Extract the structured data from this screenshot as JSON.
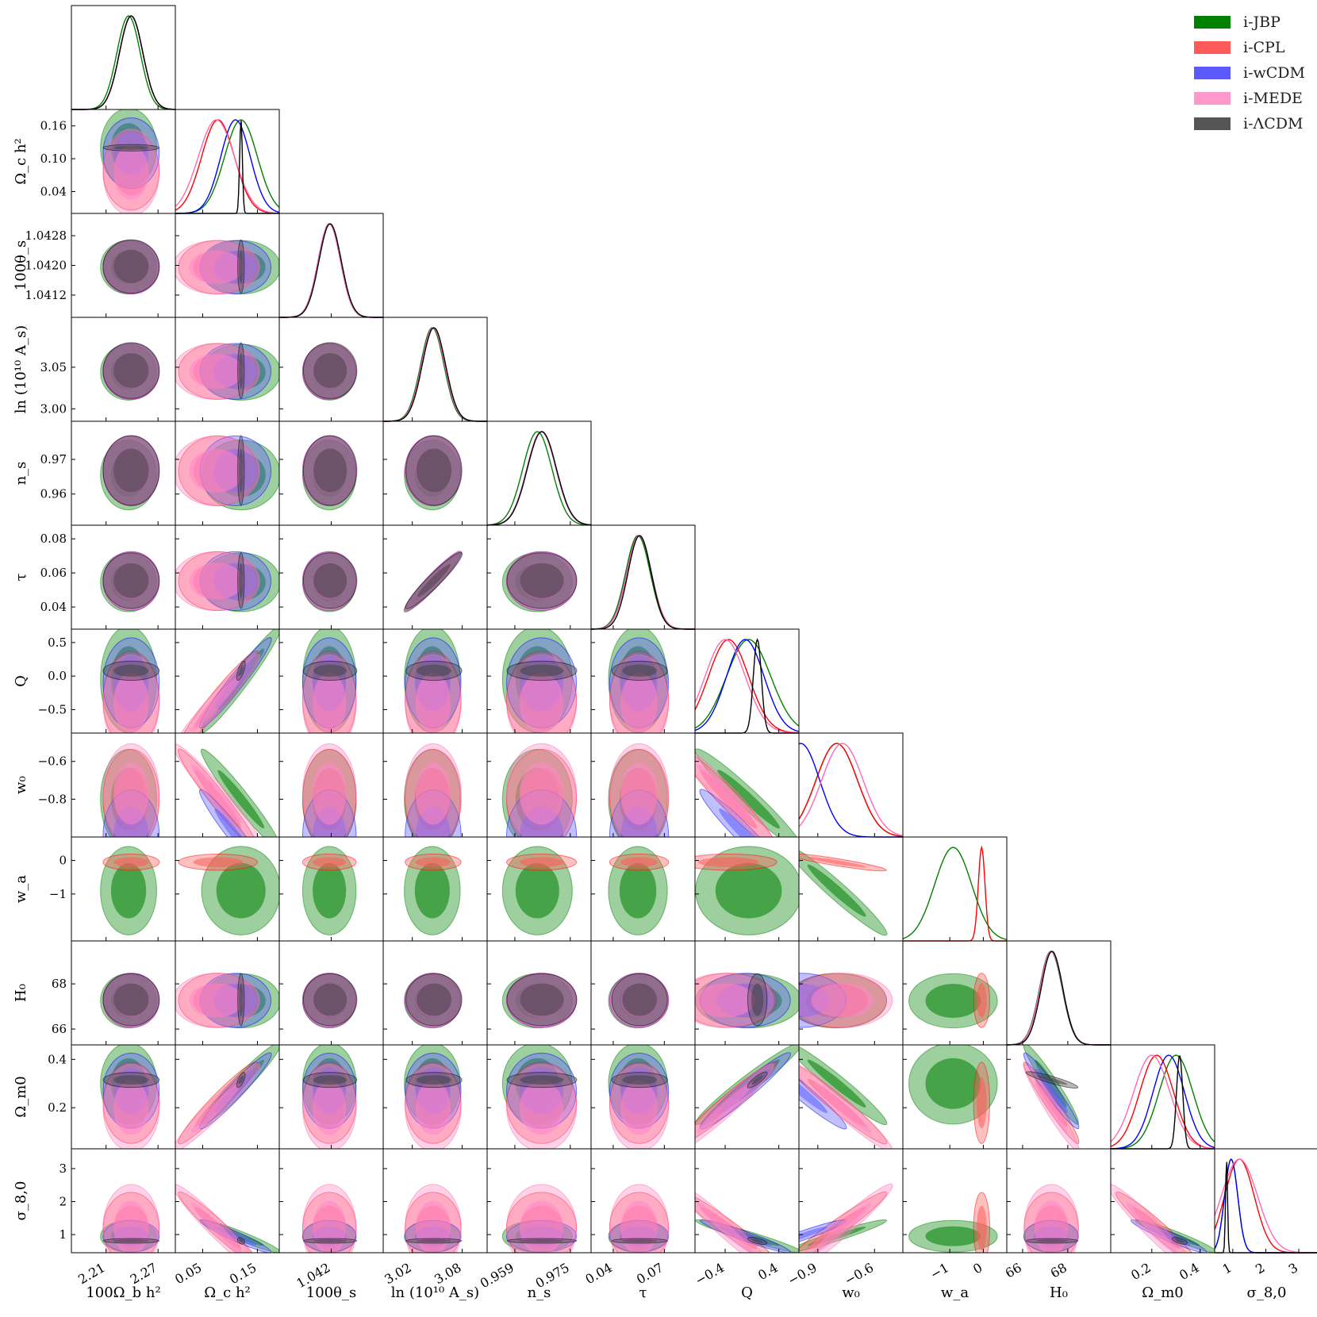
{
  "chart_data": {
    "type": "triangle-corner-plot",
    "models": [
      {
        "name": "i-JBP",
        "color": "#008000"
      },
      {
        "name": "i-CPL",
        "color": "#ff0000"
      },
      {
        "name": "i-wCDM",
        "color": "#0000ff"
      },
      {
        "name": "i-MEDE",
        "color": "#ff69b4"
      },
      {
        "name": "i-ΛCDM",
        "color": "#333333"
      }
    ],
    "legend_position": "top-right",
    "parameters": [
      {
        "id": "omegabh2",
        "label": "100Ω_b h²",
        "range": [
          2.17,
          2.29
        ],
        "ticks": [
          2.21,
          2.27
        ],
        "tick_labels": [
          "2.21",
          "2.27"
        ],
        "ylabel_ticks": [],
        "ylabel_tick_labels": []
      },
      {
        "id": "omegach2",
        "label": "Ω_c h²",
        "range": [
          0.0,
          0.19
        ],
        "ticks": [
          0.05,
          0.15
        ],
        "tick_labels": [
          "0.05",
          "0.15"
        ],
        "ylabel_ticks": [
          0.04,
          0.1,
          0.16
        ],
        "ylabel_tick_labels": [
          "0.04",
          "0.10",
          "0.16"
        ]
      },
      {
        "id": "theta",
        "label": "100θ_s",
        "range": [
          1.0406,
          1.0434
        ],
        "ticks": [
          1.042
        ],
        "tick_labels": [
          "1.042"
        ],
        "ylabel_ticks": [
          1.0412,
          1.042,
          1.0428
        ],
        "ylabel_tick_labels": [
          "1.0412",
          "1.0420",
          "1.0428"
        ]
      },
      {
        "id": "logA",
        "label": "ln (10¹⁰ A_s)",
        "range": [
          2.985,
          3.11
        ],
        "ticks": [
          3.02,
          3.08
        ],
        "tick_labels": [
          "3.02",
          "3.08"
        ],
        "ylabel_ticks": [
          3.0,
          3.05
        ],
        "ylabel_tick_labels": [
          "3.00",
          "3.05"
        ]
      },
      {
        "id": "ns",
        "label": "n_s",
        "range": [
          0.951,
          0.981
        ],
        "ticks": [
          0.959,
          0.975
        ],
        "tick_labels": [
          "0.959",
          "0.975"
        ],
        "ylabel_ticks": [
          0.96,
          0.97
        ],
        "ylabel_tick_labels": [
          "0.96",
          "0.97"
        ]
      },
      {
        "id": "tau",
        "label": "τ",
        "range": [
          0.027,
          0.088
        ],
        "ticks": [
          0.04,
          0.07
        ],
        "tick_labels": [
          "0.04",
          "0.07"
        ],
        "ylabel_ticks": [
          0.04,
          0.06,
          0.08
        ],
        "ylabel_tick_labels": [
          "0.04",
          "0.06",
          "0.08"
        ]
      },
      {
        "id": "Q",
        "label": "Q",
        "range": [
          -0.85,
          0.7
        ],
        "ticks": [
          -0.4,
          0.4
        ],
        "tick_labels": [
          "−0.4",
          "0.4"
        ],
        "ylabel_ticks": [
          -0.5,
          0.0,
          0.5
        ],
        "ylabel_tick_labels": [
          "−0.5",
          "0.0",
          "0.5"
        ]
      },
      {
        "id": "w0",
        "label": "w₀",
        "range": [
          -1.0,
          -0.45
        ],
        "ticks": [
          -0.9,
          -0.6
        ],
        "tick_labels": [
          "−0.9",
          "−0.6"
        ],
        "ylabel_ticks": [
          -0.8,
          -0.6
        ],
        "ylabel_tick_labels": [
          "−0.8",
          "−0.6"
        ]
      },
      {
        "id": "wa",
        "label": "w_a",
        "range": [
          -2.4,
          0.7
        ],
        "ticks": [
          -1,
          0
        ],
        "tick_labels": [
          "−1",
          "0"
        ],
        "ylabel_ticks": [
          -1,
          0
        ],
        "ylabel_tick_labels": [
          "−1",
          "0"
        ]
      },
      {
        "id": "H0",
        "label": "H₀",
        "range": [
          65.3,
          69.9
        ],
        "ticks": [
          66,
          68
        ],
        "tick_labels": [
          "66",
          "68"
        ],
        "ylabel_ticks": [
          66,
          68
        ],
        "ylabel_tick_labels": [
          "66",
          "68"
        ]
      },
      {
        "id": "Om",
        "label": "Ω_m0",
        "range": [
          0.03,
          0.46
        ],
        "ticks": [
          0.2,
          0.4
        ],
        "tick_labels": [
          "0.2",
          "0.4"
        ],
        "ylabel_ticks": [
          0.2,
          0.4
        ],
        "ylabel_tick_labels": [
          "0.2",
          "0.4"
        ]
      },
      {
        "id": "s8",
        "label": "σ_8,0",
        "range": [
          0.45,
          3.6
        ],
        "ticks": [
          1,
          2,
          3
        ],
        "tick_labels": [
          "1",
          "2",
          "3"
        ],
        "ylabel_ticks": [
          1,
          2,
          3
        ],
        "ylabel_tick_labels": [
          "1",
          "2",
          "3"
        ]
      }
    ],
    "posteriors_1d": {
      "omegabh2": {
        "i-JBP": [
          2.236,
          0.0135
        ],
        "i-CPL": [
          2.239,
          0.0135
        ],
        "i-wCDM": [
          2.239,
          0.0135
        ],
        "i-MEDE": [
          2.239,
          0.0135
        ],
        "i-ΛCDM": [
          2.239,
          0.0135
        ]
      },
      "omegach2": {
        "i-JBP": [
          0.12,
          0.03
        ],
        "i-CPL": [
          0.078,
          0.03
        ],
        "i-wCDM": [
          0.11,
          0.027
        ],
        "i-MEDE": [
          0.075,
          0.033
        ],
        "i-ΛCDM": [
          0.12,
          0.0025
        ]
      },
      "theta": {
        "i-JBP": [
          1.04195,
          0.0003
        ],
        "i-CPL": [
          1.04195,
          0.0003
        ],
        "i-wCDM": [
          1.04195,
          0.0003
        ],
        "i-MEDE": [
          1.04195,
          0.0003
        ],
        "i-ΛCDM": [
          1.04197,
          0.0003
        ]
      },
      "logA": {
        "i-JBP": [
          3.044,
          0.014
        ],
        "i-CPL": [
          3.045,
          0.014
        ],
        "i-wCDM": [
          3.045,
          0.014
        ],
        "i-MEDE": [
          3.045,
          0.014
        ],
        "i-ΛCDM": [
          3.046,
          0.014
        ]
      },
      "ns": {
        "i-JBP": [
          0.9655,
          0.0042
        ],
        "i-CPL": [
          0.9667,
          0.0042
        ],
        "i-wCDM": [
          0.9667,
          0.0042
        ],
        "i-MEDE": [
          0.9667,
          0.0042
        ],
        "i-ΛCDM": [
          0.9668,
          0.0042
        ]
      },
      "tau": {
        "i-JBP": [
          0.0545,
          0.0072
        ],
        "i-CPL": [
          0.0552,
          0.0072
        ],
        "i-wCDM": [
          0.0552,
          0.0072
        ],
        "i-MEDE": [
          0.0552,
          0.0072
        ],
        "i-ΛCDM": [
          0.0555,
          0.0068
        ]
      },
      "Q": {
        "i-JBP": [
          -0.05,
          0.33
        ],
        "i-CPL": [
          -0.35,
          0.3
        ],
        "i-wCDM": [
          -0.1,
          0.28
        ],
        "i-MEDE": [
          -0.4,
          0.3
        ],
        "i-ΛCDM": [
          0.08,
          0.06
        ]
      },
      "w0": {
        "i-JBP": [
          -0.8,
          0.11
        ],
        "i-CPL": [
          -0.8,
          0.11
        ],
        "i-wCDM": [
          -0.99,
          0.1
        ],
        "i-MEDE": [
          -0.77,
          0.11
        ]
      },
      "wa": {
        "i-JBP": [
          -0.9,
          0.55
        ],
        "i-CPL": [
          -0.05,
          0.1
        ]
      },
      "H0": {
        "i-JBP": [
          67.25,
          0.5
        ],
        "i-CPL": [
          67.27,
          0.5
        ],
        "i-wCDM": [
          67.27,
          0.5
        ],
        "i-MEDE": [
          67.27,
          0.5
        ],
        "i-ΛCDM": [
          67.3,
          0.48
        ]
      },
      "Om": {
        "i-JBP": [
          0.3,
          0.07
        ],
        "i-CPL": [
          0.22,
          0.07
        ],
        "i-wCDM": [
          0.27,
          0.065
        ],
        "i-MEDE": [
          0.2,
          0.075
        ],
        "i-ΛCDM": [
          0.315,
          0.013
        ]
      },
      "s8": {
        "i-JBP": [
          0.95,
          0.2
        ],
        "i-CPL": [
          1.2,
          0.45
        ],
        "i-wCDM": [
          0.95,
          0.2
        ],
        "i-MEDE": [
          1.2,
          0.55
        ],
        "i-ΛCDM": [
          0.81,
          0.03
        ]
      }
    }
  }
}
